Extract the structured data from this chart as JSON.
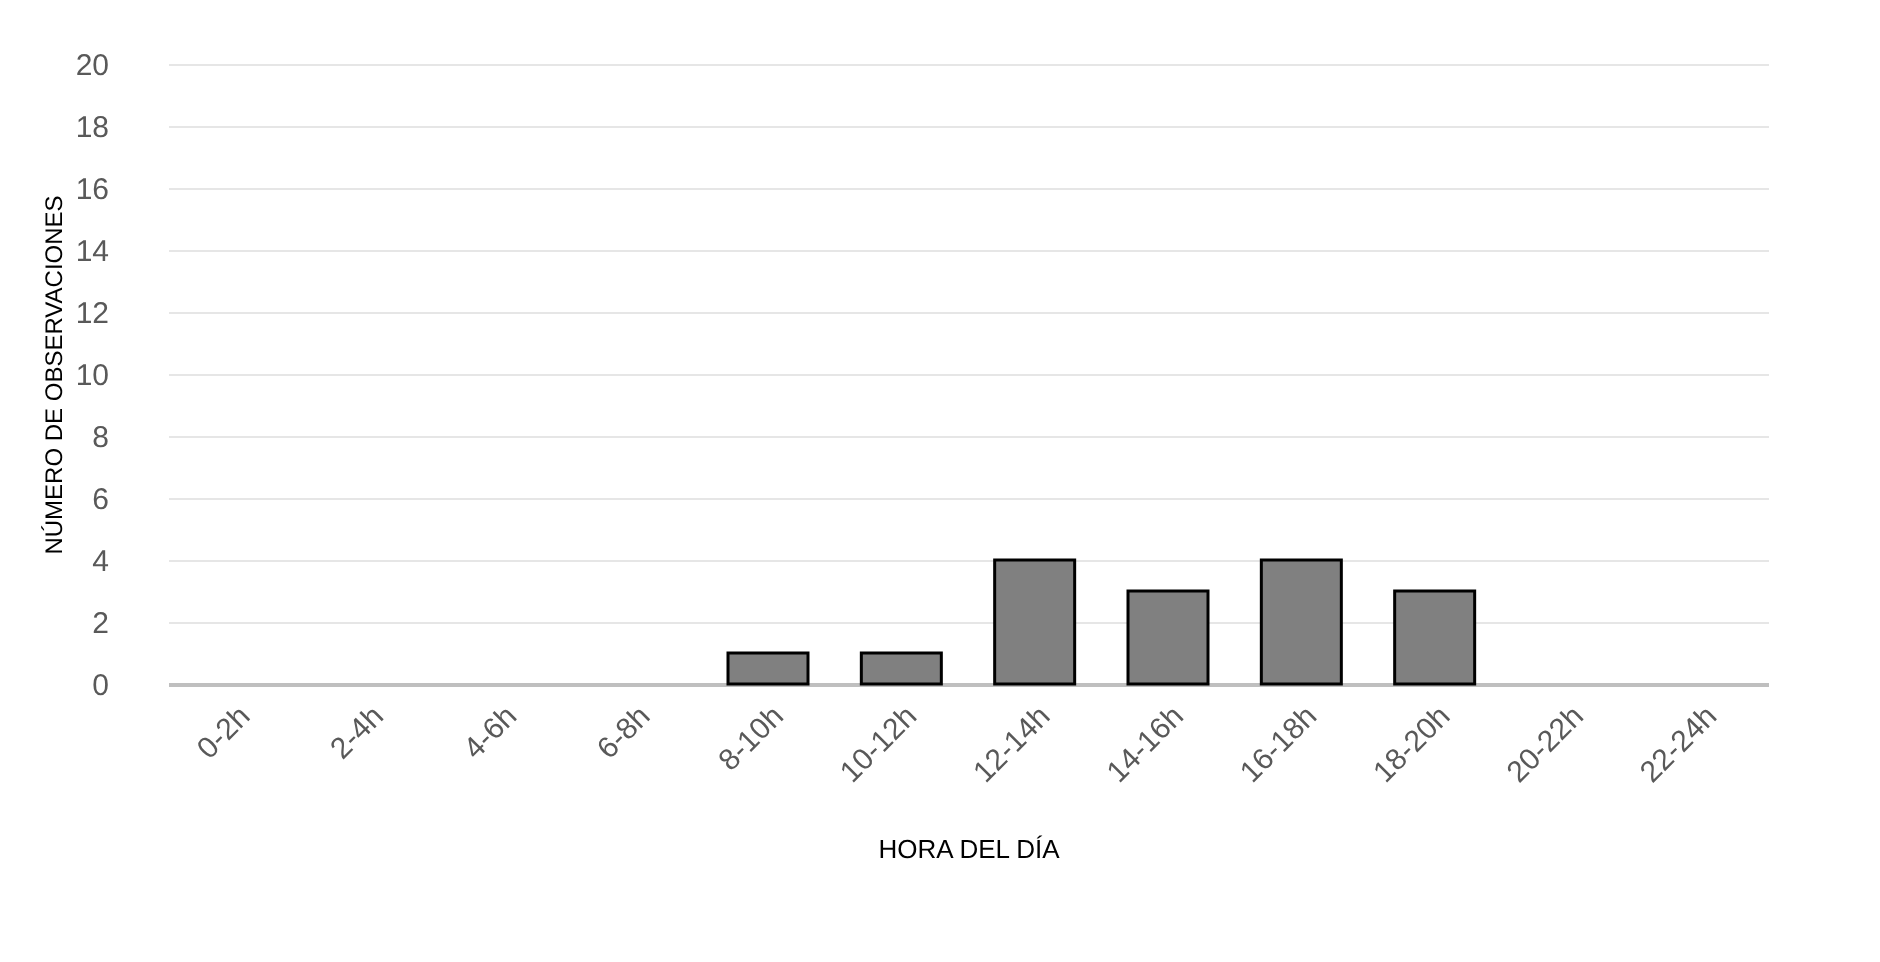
{
  "chart_data": {
    "type": "bar",
    "xlabel": "HORA DEL DÍA",
    "ylabel": "NÚMERO DE OBSERVACIONES",
    "categories": [
      "0-2h",
      "2-4h",
      "4-6h",
      "6-8h",
      "8-10h",
      "10-12h",
      "12-14h",
      "14-16h",
      "16-18h",
      "18-20h",
      "20-22h",
      "22-24h"
    ],
    "values": [
      0,
      0,
      0,
      0,
      1,
      1,
      4,
      3,
      4,
      3,
      0,
      0
    ],
    "color": "#808080",
    "ylim": [
      0,
      20
    ],
    "yticks": [
      0,
      2,
      4,
      6,
      8,
      10,
      12,
      14,
      16,
      18,
      20
    ],
    "grid": "y"
  }
}
